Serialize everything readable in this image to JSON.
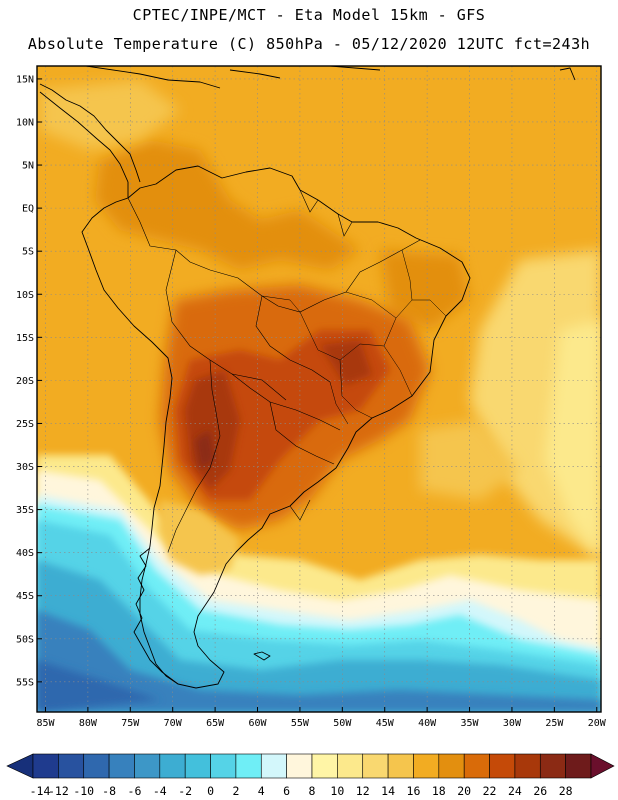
{
  "header": {
    "line1": "CPTEC/INPE/MCT -  Eta Model 15km - GFS",
    "line2": "Absolute Temperature (C) 850hPa - 05/12/2020 12UTC fct=243h"
  },
  "map": {
    "lat_ticks": [
      "15N",
      "10N",
      "5N",
      "EQ",
      "5S",
      "10S",
      "15S",
      "20S",
      "25S",
      "30S",
      "35S",
      "40S",
      "45S",
      "50S",
      "55S"
    ],
    "lon_ticks": [
      "85W",
      "80W",
      "75W",
      "70W",
      "65W",
      "60W",
      "55W",
      "50W",
      "45W",
      "40W",
      "35W",
      "30W",
      "25W",
      "20W"
    ],
    "extent": {
      "lon_min": -86,
      "lon_max": -19.5,
      "lat_min": -58.5,
      "lat_max": 16.5
    },
    "field_summary": "850hPa temperature, warmest (24-26C) over central South America, cold (-10 to -4C) over the Southern Ocean"
  },
  "colorbar": {
    "labels": [
      "-14",
      "-12",
      "-10",
      "-8",
      "-6",
      "-4",
      "-2",
      "0",
      "2",
      "4",
      "6",
      "8",
      "10",
      "12",
      "14",
      "16",
      "18",
      "20",
      "22",
      "24",
      "26",
      "28"
    ],
    "colors": [
      "#1f3b8e",
      "#28529f",
      "#2f68ae",
      "#3781bd",
      "#3d97c7",
      "#3dadd2",
      "#43c0dc",
      "#55d3e7",
      "#6feef6",
      "#d3f7fb",
      "#fff6dc",
      "#fff5a6",
      "#fce98c",
      "#f9d870",
      "#f5c54d",
      "#f2ac22",
      "#e38f0f",
      "#d96b09",
      "#c54a08",
      "#a8380a",
      "#8b2a14",
      "#6e1b1b"
    ],
    "low_arrow_color": "#17307a",
    "high_arrow_color": "#6a0f2c"
  }
}
